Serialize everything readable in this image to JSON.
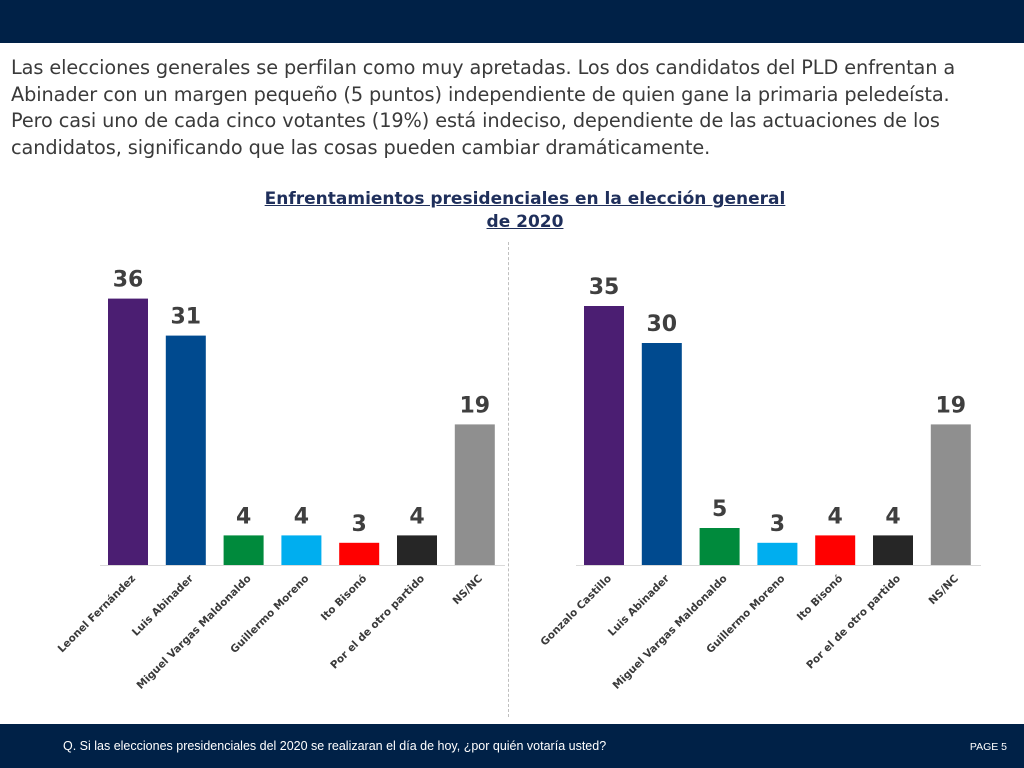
{
  "intro": {
    "line1": "Las elecciones generales se perfilan como muy apretadas. Los dos candidatos del PLD enfrentan a",
    "line2": "Abinader con un margen pequeño (5 puntos) independiente de quien gane la primaria peledeísta.",
    "line3": "Pero casi uno de cada cinco votantes (19%) está indeciso, dependiente de las actuaciones de los",
    "line4": "candidatos, significando que las cosas pueden cambiar dramáticamente."
  },
  "chart_title": {
    "line1": "Enfrentamientos presidenciales en la elección general",
    "line2": "de 2020"
  },
  "colors": {
    "purple": "#4b1e72",
    "blue": "#004a8f",
    "green": "#008a3c",
    "light_blue": "#00aeef",
    "red": "#ff0000",
    "black": "#262626",
    "gray": "#8f8f8f",
    "header": "#002147"
  },
  "chart_data": [
    {
      "type": "bar",
      "categories": [
        "Leonel Fernández",
        "Luis Abinader",
        "Miguel Vargas Maldonaldo",
        "Guillermo Moreno",
        "Ito Bisonó",
        "Por el de otro partido",
        "NS/NC"
      ],
      "values": [
        36,
        31,
        4,
        4,
        3,
        4,
        19
      ],
      "colors": [
        "#4b1e72",
        "#004a8f",
        "#008a3c",
        "#00aeef",
        "#ff0000",
        "#262626",
        "#8f8f8f"
      ],
      "ylim": [
        0,
        36
      ],
      "grid": false
    },
    {
      "type": "bar",
      "categories": [
        "Gonzalo Castillo",
        "Luis Abinader",
        "Miguel Vargas Maldonaldo",
        "Guillermo Moreno",
        "Ito Bisonó",
        "Por el de otro partido",
        "NS/NC"
      ],
      "values": [
        35,
        30,
        5,
        3,
        4,
        4,
        19
      ],
      "colors": [
        "#4b1e72",
        "#004a8f",
        "#008a3c",
        "#00aeef",
        "#ff0000",
        "#262626",
        "#8f8f8f"
      ],
      "ylim": [
        0,
        36
      ],
      "grid": false
    }
  ],
  "footer": {
    "question": "Q. Si las elecciones presidenciales del 2020 se realizaran el día de hoy, ¿por quién votaría usted?",
    "page": "PAGE  5"
  }
}
